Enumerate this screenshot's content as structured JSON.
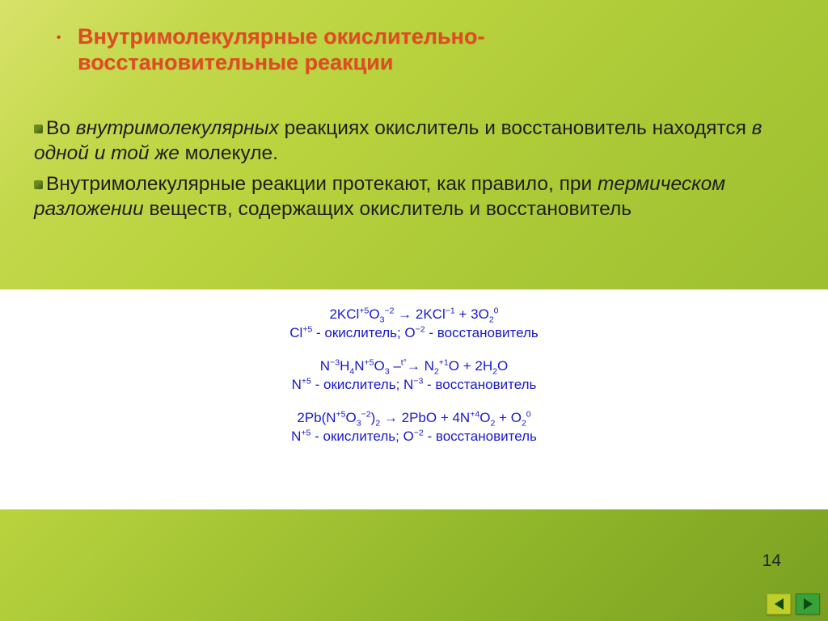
{
  "colors": {
    "title": "#e24a22",
    "body_text": "#1e1e1e",
    "chem_text": "#1818cc",
    "bg_gradient_top": "#d8e26a",
    "bg_gradient_bottom": "#7aa022",
    "nav_green": "#38a238",
    "nav_yellow": "#bfce28"
  },
  "fonts": {
    "title_size_pt": 27,
    "body_size_pt": 24.5,
    "chem_size_pt": 17,
    "pagenum_size_pt": 21
  },
  "title": {
    "line1": "Внутримолекулярные окислительно-",
    "line2": "восстановительные реакции"
  },
  "paragraphs": {
    "p1_pre": "Во ",
    "p1_em1": "внутримолекулярных",
    "p1_mid": " реакциях окислитель и восстановитель находятся ",
    "p1_em2": "в одной и той же",
    "p1_post": " молекуле.",
    "p2_pre": "Внутримолекулярные реакции протекают, как правило, при ",
    "p2_em1": "термическом разложении",
    "p2_post": " веществ, содержащих окислитель и восстановитель"
  },
  "chem": {
    "g1": {
      "eq_html": "2KCl<sup>+5</sup>O<sub>3</sub><sup>−2</sup> &rarr; 2KCl<sup>−1</sup> + 3O<sub>2</sub><sup>0</sup>",
      "role_html": "Cl<sup>+5</sup> - окислитель; O<sup>−2</sup> - восстановитель"
    },
    "g2": {
      "eq_html": "N<sup>−3</sup>H<sub>4</sub>N<sup>+5</sup>O<sub>3</sub>  –<sup>t°</sup>&rarr;  N<sub>2</sub><sup>+1</sup>O + 2H<sub>2</sub>O",
      "role_html": "N<sup>+5</sup> - окислитель; N<sup>−3</sup> - восстановитель"
    },
    "g3": {
      "eq_html": "2Pb(N<sup>+5</sup>O<sub>3</sub><sup>−2</sup>)<sub>2</sub> &rarr; 2PbO + 4N<sup>+4</sup>O<sub>2</sub> + O<sub>2</sub><sup>0</sup>",
      "role_html": "N<sup>+5</sup> - окислитель; O<sup>−2</sup> - восстановитель"
    }
  },
  "page_number": "14",
  "nav": {
    "prev": "prev-slide",
    "next": "next-slide"
  }
}
